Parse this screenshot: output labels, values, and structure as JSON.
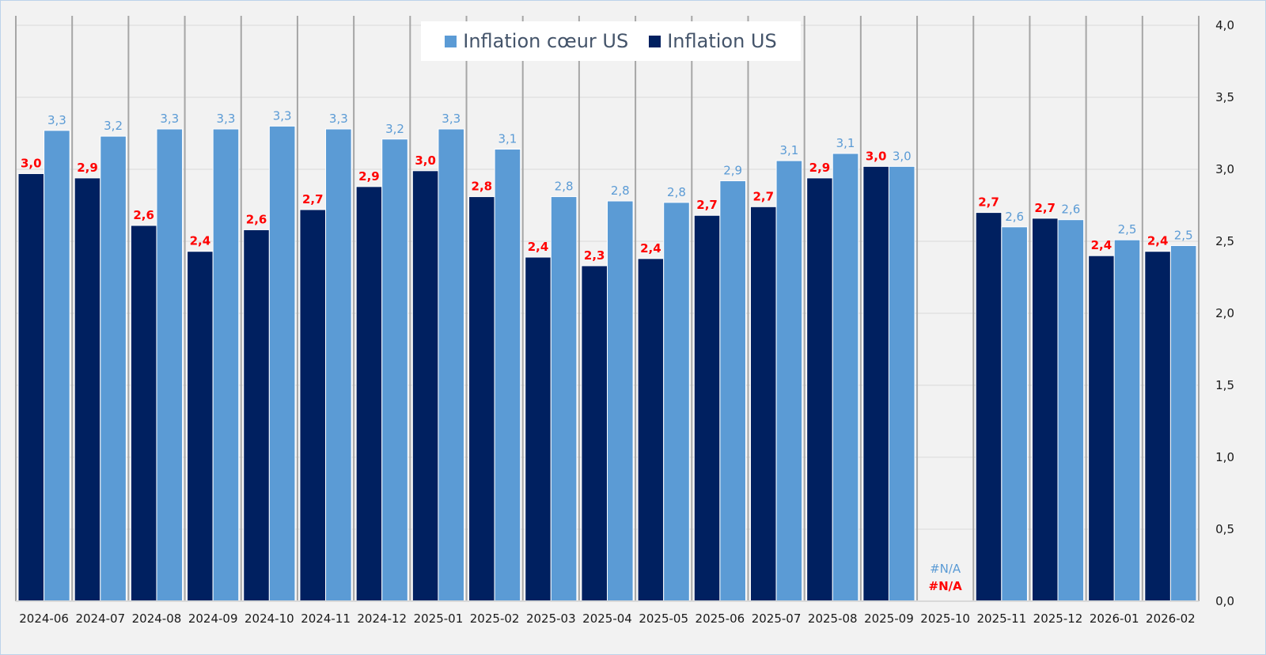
{
  "chart_data": {
    "type": "bar",
    "title": "",
    "xlabel": "",
    "ylabel": "",
    "ylim": [
      0,
      4
    ],
    "yticks": [
      "0,0",
      "0,5",
      "1,0",
      "1,5",
      "2,0",
      "2,5",
      "3,0",
      "3,5",
      "4,0"
    ],
    "ytick_values": [
      0,
      0.5,
      1,
      1.5,
      2,
      2.5,
      3,
      3.5,
      4
    ],
    "y_axis_side": "right",
    "grid": true,
    "legend_placement": "top-center",
    "categories": [
      "2024-06",
      "2024-07",
      "2024-08",
      "2024-09",
      "2024-10",
      "2024-11",
      "2024-12",
      "2025-01",
      "2025-02",
      "2025-03",
      "2025-04",
      "2025-05",
      "2025-06",
      "2025-07",
      "2025-08",
      "2025-09",
      "2025-10",
      "2025-11",
      "2025-12",
      "2026-01",
      "2026-02"
    ],
    "series": [
      {
        "name": "Inflation US",
        "color": "#002060",
        "label_color": "#ff0000",
        "values": [
          2.97,
          2.94,
          2.61,
          2.43,
          2.58,
          2.72,
          2.88,
          2.99,
          2.81,
          2.39,
          2.33,
          2.38,
          2.68,
          2.74,
          2.94,
          3.02,
          null,
          2.7,
          2.66,
          2.4,
          2.43
        ],
        "labels": [
          "3,0",
          "2,9",
          "2,6",
          "2,4",
          "2,6",
          "2,7",
          "2,9",
          "3,0",
          "2,8",
          "2,4",
          "2,3",
          "2,4",
          "2,7",
          "2,7",
          "2,9",
          "3,0",
          "#N/A",
          "2,7",
          "2,7",
          "2,4",
          "2,4"
        ]
      },
      {
        "name": "Inflation cœur US",
        "color": "#5b9bd5",
        "label_color": "#5b9bd5",
        "values": [
          3.27,
          3.23,
          3.28,
          3.28,
          3.3,
          3.28,
          3.21,
          3.28,
          3.14,
          2.81,
          2.78,
          2.77,
          2.92,
          3.06,
          3.11,
          3.02,
          null,
          2.6,
          2.65,
          2.51,
          2.47
        ],
        "labels": [
          "3,3",
          "3,2",
          "3,3",
          "3,3",
          "3,3",
          "3,3",
          "3,2",
          "3,3",
          "3,1",
          "2,8",
          "2,8",
          "2,8",
          "2,9",
          "3,1",
          "3,1",
          "3,0",
          "#N/A",
          "2,6",
          "2,6",
          "2,5",
          "2,5"
        ]
      }
    ],
    "legend_order": [
      "Inflation cœur US",
      "Inflation US"
    ]
  }
}
